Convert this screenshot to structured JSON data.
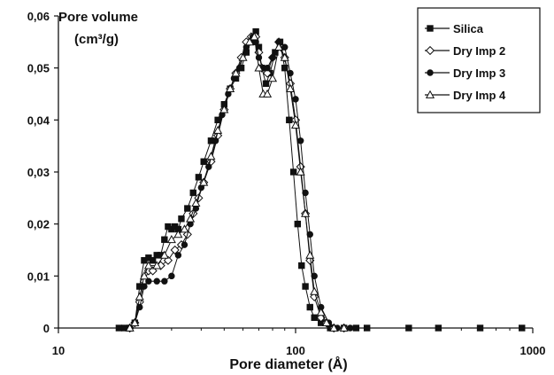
{
  "chart_data": {
    "type": "line",
    "ylabel_line1": "Pore volume",
    "ylabel_line2": "(cm³/g)",
    "xlabel": "Pore diameter (Å)",
    "x_scale": "log",
    "xlim": [
      10,
      1000
    ],
    "ylim": [
      0,
      0.06
    ],
    "x_ticks": [
      {
        "value": 10,
        "label": "10"
      },
      {
        "value": 100,
        "label": "100"
      },
      {
        "value": 1000,
        "label": "1000"
      }
    ],
    "y_ticks": [
      {
        "value": 0,
        "label": "0"
      },
      {
        "value": 0.01,
        "label": "0,01"
      },
      {
        "value": 0.02,
        "label": "0,02"
      },
      {
        "value": 0.03,
        "label": "0,03"
      },
      {
        "value": 0.04,
        "label": "0,04"
      },
      {
        "value": 0.05,
        "label": "0,05"
      },
      {
        "value": 0.06,
        "label": "0,06"
      }
    ],
    "grid": false,
    "legend_position": "top-right",
    "series": [
      {
        "name": "Silica",
        "marker": "filled-square",
        "points": [
          [
            18,
            0
          ],
          [
            19,
            0
          ],
          [
            20,
            0
          ],
          [
            21,
            0.001
          ],
          [
            22,
            0.008
          ],
          [
            23,
            0.013
          ],
          [
            24,
            0.0135
          ],
          [
            25,
            0.013
          ],
          [
            26,
            0.014
          ],
          [
            27,
            0.014
          ],
          [
            28,
            0.017
          ],
          [
            29,
            0.0195
          ],
          [
            30,
            0.019
          ],
          [
            31,
            0.0195
          ],
          [
            32,
            0.019
          ],
          [
            33,
            0.021
          ],
          [
            35,
            0.023
          ],
          [
            37,
            0.026
          ],
          [
            39,
            0.029
          ],
          [
            41,
            0.032
          ],
          [
            44,
            0.036
          ],
          [
            47,
            0.04
          ],
          [
            50,
            0.043
          ],
          [
            53,
            0.046
          ],
          [
            56,
            0.048
          ],
          [
            59,
            0.05
          ],
          [
            62,
            0.053
          ],
          [
            65,
            0.055
          ],
          [
            68,
            0.057
          ],
          [
            70,
            0.054
          ],
          [
            72,
            0.05
          ],
          [
            75,
            0.047
          ],
          [
            78,
            0.049
          ],
          [
            82,
            0.053
          ],
          [
            86,
            0.055
          ],
          [
            90,
            0.05
          ],
          [
            94,
            0.04
          ],
          [
            98,
            0.03
          ],
          [
            102,
            0.02
          ],
          [
            106,
            0.012
          ],
          [
            110,
            0.008
          ],
          [
            115,
            0.004
          ],
          [
            120,
            0.002
          ],
          [
            128,
            0.001
          ],
          [
            140,
            0
          ],
          [
            160,
            0
          ],
          [
            180,
            0
          ],
          [
            200,
            0
          ],
          [
            300,
            0
          ],
          [
            400,
            0
          ],
          [
            600,
            0
          ],
          [
            900,
            0
          ]
        ]
      },
      {
        "name": "Dry Imp 2",
        "marker": "open-diamond",
        "points": [
          [
            20,
            0
          ],
          [
            21,
            0.001
          ],
          [
            22,
            0.005
          ],
          [
            23,
            0.009
          ],
          [
            24,
            0.011
          ],
          [
            25,
            0.011
          ],
          [
            27,
            0.012
          ],
          [
            29,
            0.013
          ],
          [
            31,
            0.015
          ],
          [
            33,
            0.016
          ],
          [
            35,
            0.018
          ],
          [
            37,
            0.022
          ],
          [
            39,
            0.025
          ],
          [
            41,
            0.028
          ],
          [
            44,
            0.032
          ],
          [
            47,
            0.037
          ],
          [
            50,
            0.042
          ],
          [
            53,
            0.046
          ],
          [
            56,
            0.049
          ],
          [
            59,
            0.052
          ],
          [
            62,
            0.055
          ],
          [
            65,
            0.056
          ],
          [
            68,
            0.056
          ],
          [
            70,
            0.053
          ],
          [
            72,
            0.05
          ],
          [
            76,
            0.049
          ],
          [
            80,
            0.052
          ],
          [
            85,
            0.055
          ],
          [
            90,
            0.052
          ],
          [
            95,
            0.047
          ],
          [
            100,
            0.04
          ],
          [
            105,
            0.031
          ],
          [
            110,
            0.022
          ],
          [
            115,
            0.013
          ],
          [
            120,
            0.006
          ],
          [
            128,
            0.002
          ],
          [
            135,
            0.001
          ],
          [
            145,
            0
          ],
          [
            160,
            0
          ]
        ]
      },
      {
        "name": "Dry Imp 3",
        "marker": "filled-circle",
        "points": [
          [
            20,
            0
          ],
          [
            21,
            0.001
          ],
          [
            22,
            0.004
          ],
          [
            23,
            0.008
          ],
          [
            24,
            0.009
          ],
          [
            26,
            0.009
          ],
          [
            28,
            0.009
          ],
          [
            30,
            0.01
          ],
          [
            32,
            0.014
          ],
          [
            34,
            0.016
          ],
          [
            36,
            0.02
          ],
          [
            38,
            0.023
          ],
          [
            40,
            0.027
          ],
          [
            43,
            0.031
          ],
          [
            46,
            0.036
          ],
          [
            49,
            0.041
          ],
          [
            52,
            0.045
          ],
          [
            55,
            0.048
          ],
          [
            58,
            0.05
          ],
          [
            62,
            0.054
          ],
          [
            66,
            0.056
          ],
          [
            68,
            0.055
          ],
          [
            70,
            0.052
          ],
          [
            73,
            0.05
          ],
          [
            76,
            0.05
          ],
          [
            80,
            0.052
          ],
          [
            85,
            0.055
          ],
          [
            90,
            0.054
          ],
          [
            95,
            0.049
          ],
          [
            100,
            0.044
          ],
          [
            105,
            0.036
          ],
          [
            110,
            0.026
          ],
          [
            115,
            0.018
          ],
          [
            120,
            0.01
          ],
          [
            128,
            0.004
          ],
          [
            138,
            0.001
          ],
          [
            150,
            0
          ],
          [
            170,
            0
          ]
        ]
      },
      {
        "name": "Dry Imp 4",
        "marker": "open-triangle",
        "points": [
          [
            20,
            0
          ],
          [
            21,
            0.001
          ],
          [
            22,
            0.006
          ],
          [
            23,
            0.01
          ],
          [
            24,
            0.012
          ],
          [
            26,
            0.012
          ],
          [
            28,
            0.014
          ],
          [
            30,
            0.017
          ],
          [
            32,
            0.018
          ],
          [
            34,
            0.019
          ],
          [
            36,
            0.021
          ],
          [
            38,
            0.024
          ],
          [
            41,
            0.028
          ],
          [
            44,
            0.033
          ],
          [
            47,
            0.038
          ],
          [
            50,
            0.042
          ],
          [
            53,
            0.046
          ],
          [
            56,
            0.049
          ],
          [
            60,
            0.052
          ],
          [
            64,
            0.055
          ],
          [
            67,
            0.056
          ],
          [
            70,
            0.05
          ],
          [
            73,
            0.045
          ],
          [
            76,
            0.045
          ],
          [
            80,
            0.048
          ],
          [
            85,
            0.054
          ],
          [
            90,
            0.052
          ],
          [
            95,
            0.046
          ],
          [
            100,
            0.039
          ],
          [
            105,
            0.03
          ],
          [
            110,
            0.022
          ],
          [
            115,
            0.014
          ],
          [
            120,
            0.007
          ],
          [
            128,
            0.003
          ],
          [
            135,
            0.001
          ],
          [
            145,
            0
          ],
          [
            160,
            0
          ]
        ]
      }
    ]
  }
}
